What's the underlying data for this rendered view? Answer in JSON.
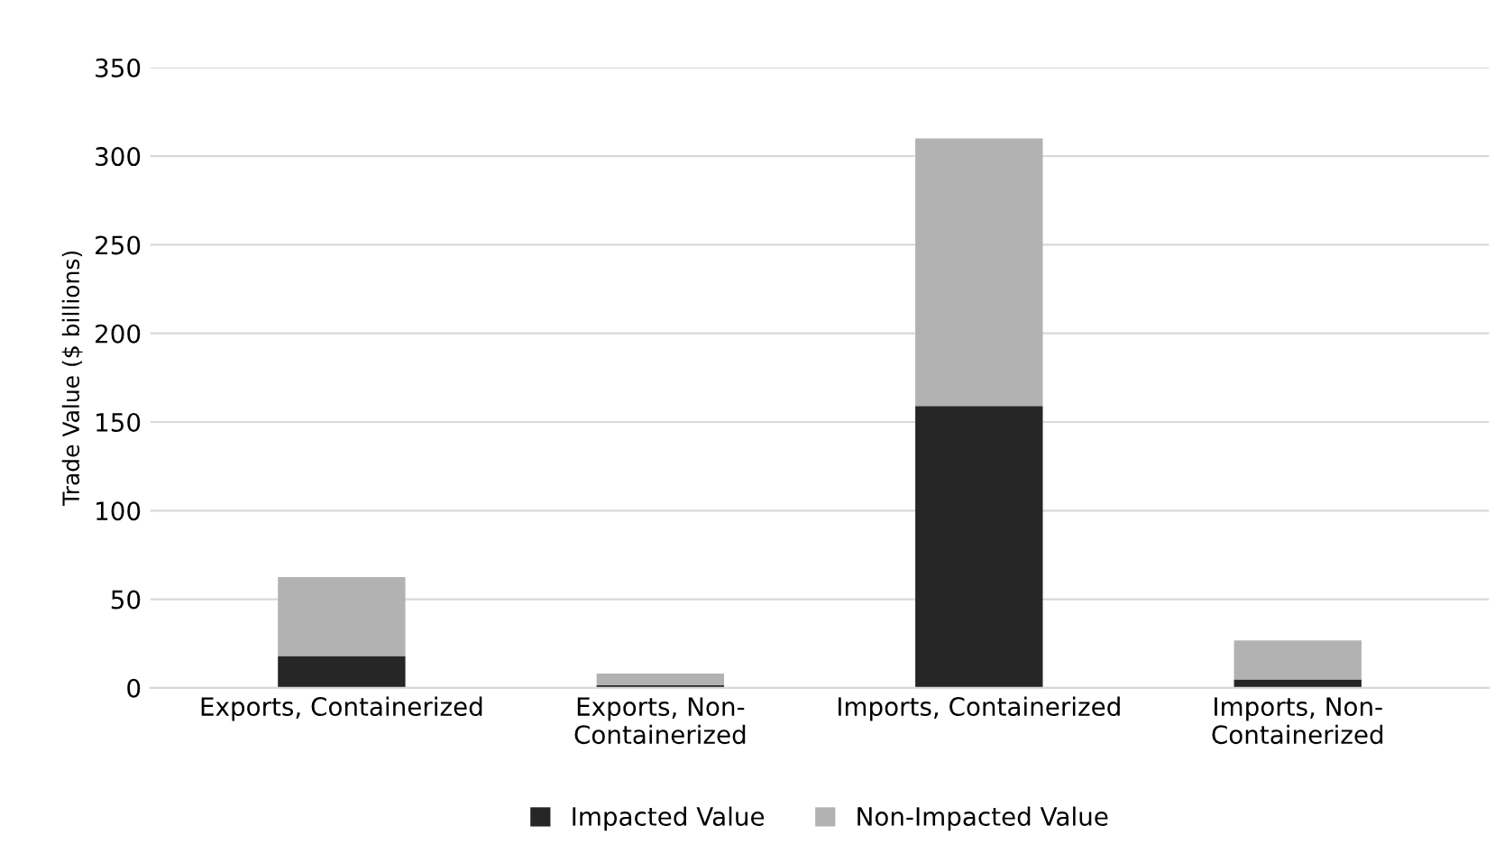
{
  "chart_data": {
    "type": "bar",
    "stacked": true,
    "ylabel": "Trade Value ($ billions)",
    "categories": [
      "Exports, Containerized",
      "Exports, Non-\nContainerized",
      "Imports, Containerized",
      "Imports, Non-\nContainerized"
    ],
    "series": [
      {
        "name": "Impacted Value",
        "color": "#262626",
        "values": [
          18,
          1.5,
          159,
          4.7
        ]
      },
      {
        "name": "Non-Impacted Value",
        "color": "#b2b2b2",
        "values": [
          44.5,
          6.5,
          151,
          22
        ]
      }
    ],
    "ylim": [
      0,
      350
    ],
    "yticks": [
      0,
      50,
      100,
      150,
      200,
      250,
      300,
      350
    ],
    "grid": "y",
    "legend": "bottom"
  }
}
